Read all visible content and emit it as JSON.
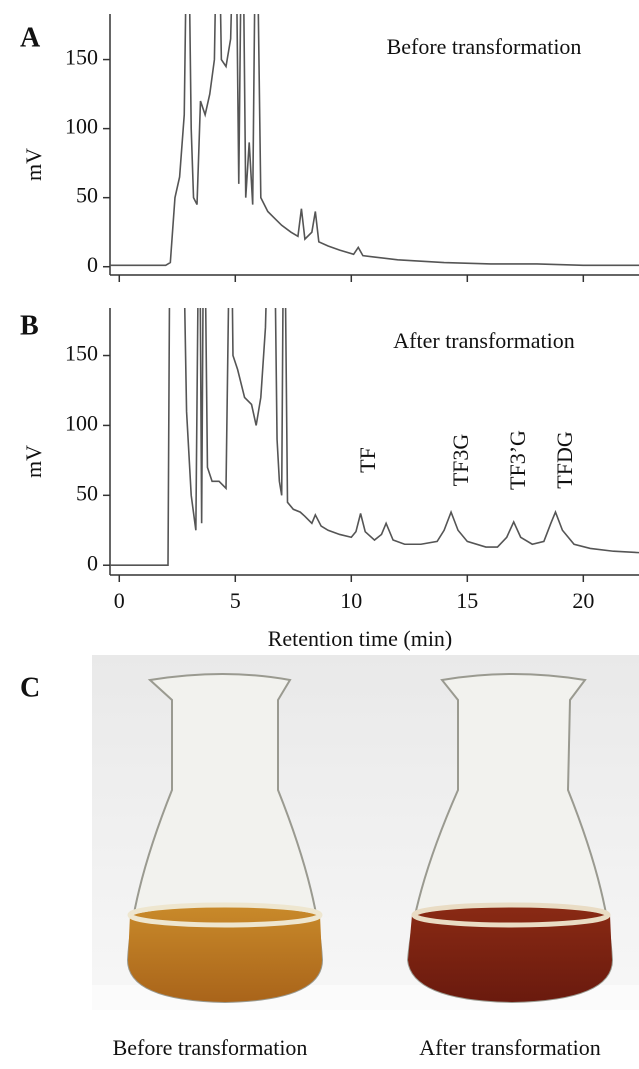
{
  "chart_data": [
    {
      "type": "line",
      "label": "A",
      "title": "Before transformation",
      "ylabel": "mV",
      "color": "#555555",
      "x": [
        -0.4,
        2.0,
        2.2,
        2.4,
        2.6,
        2.8,
        2.95,
        3.1,
        3.2,
        3.35,
        3.5,
        3.7,
        3.9,
        4.1,
        4.25,
        4.4,
        4.6,
        4.8,
        5.0,
        5.15,
        5.3,
        5.45,
        5.6,
        5.75,
        5.9,
        6.1,
        6.4,
        6.7,
        7.0,
        7.4,
        7.7,
        7.85,
        8.0,
        8.3,
        8.45,
        8.6,
        9.0,
        9.5,
        10.1,
        10.3,
        10.5,
        11,
        12,
        14,
        16,
        18,
        20,
        22.4
      ],
      "values": [
        1,
        1,
        3,
        50,
        65,
        110,
        300,
        100,
        50,
        45,
        120,
        110,
        125,
        150,
        300,
        150,
        145,
        165,
        300,
        60,
        300,
        50,
        90,
        45,
        300,
        50,
        40,
        35,
        30,
        25,
        22,
        42,
        20,
        25,
        40,
        18,
        15,
        12,
        9,
        14,
        8,
        7,
        5,
        3,
        2,
        2,
        1,
        1
      ],
      "xlim": [
        -0.4,
        22.4
      ],
      "ylim": [
        -6,
        183
      ],
      "yticks": [
        0,
        50,
        100,
        150
      ]
    },
    {
      "type": "line",
      "label": "B",
      "title": "After transformation",
      "ylabel": "mV",
      "xlabel": "Retention time (min)",
      "color": "#555555",
      "x": [
        -0.4,
        2.0,
        2.1,
        2.2,
        2.7,
        2.9,
        3.1,
        3.3,
        3.45,
        3.55,
        3.65,
        3.8,
        4.0,
        4.3,
        4.6,
        4.8,
        4.9,
        5.1,
        5.4,
        5.7,
        5.9,
        6.1,
        6.3,
        6.5,
        6.65,
        6.8,
        6.9,
        7.0,
        7.1,
        7.25,
        7.5,
        7.8,
        8.0,
        8.3,
        8.45,
        8.7,
        9.0,
        9.5,
        10.0,
        10.2,
        10.4,
        10.6,
        11.0,
        11.3,
        11.5,
        11.8,
        12.3,
        13.0,
        13.7,
        14.0,
        14.3,
        14.6,
        15.0,
        15.8,
        16.3,
        16.7,
        17.0,
        17.3,
        17.8,
        18.3,
        18.6,
        18.8,
        19.1,
        19.6,
        20.3,
        21.3,
        22.4
      ],
      "values": [
        0,
        0,
        0,
        300,
        300,
        110,
        50,
        25,
        300,
        30,
        300,
        70,
        60,
        60,
        55,
        300,
        150,
        140,
        120,
        115,
        100,
        120,
        170,
        300,
        300,
        90,
        60,
        50,
        300,
        45,
        40,
        38,
        35,
        30,
        36,
        28,
        25,
        22,
        20,
        24,
        37,
        24,
        18,
        22,
        30,
        18,
        15,
        15,
        17,
        25,
        38,
        25,
        17,
        13,
        13,
        20,
        31,
        20,
        15,
        17,
        30,
        38,
        25,
        15,
        12,
        10,
        9
      ],
      "xlim": [
        -0.4,
        22.4
      ],
      "ylim": [
        -7,
        184
      ],
      "yticks": [
        0,
        50,
        100,
        150
      ],
      "xticks": [
        0,
        5,
        10,
        15,
        20
      ],
      "annotations": [
        "TF",
        "TF3G",
        "TF3’G",
        "TFDG"
      ]
    }
  ],
  "panel_c": {
    "label": "C",
    "captions": [
      "Before transformation",
      "After transformation"
    ]
  }
}
